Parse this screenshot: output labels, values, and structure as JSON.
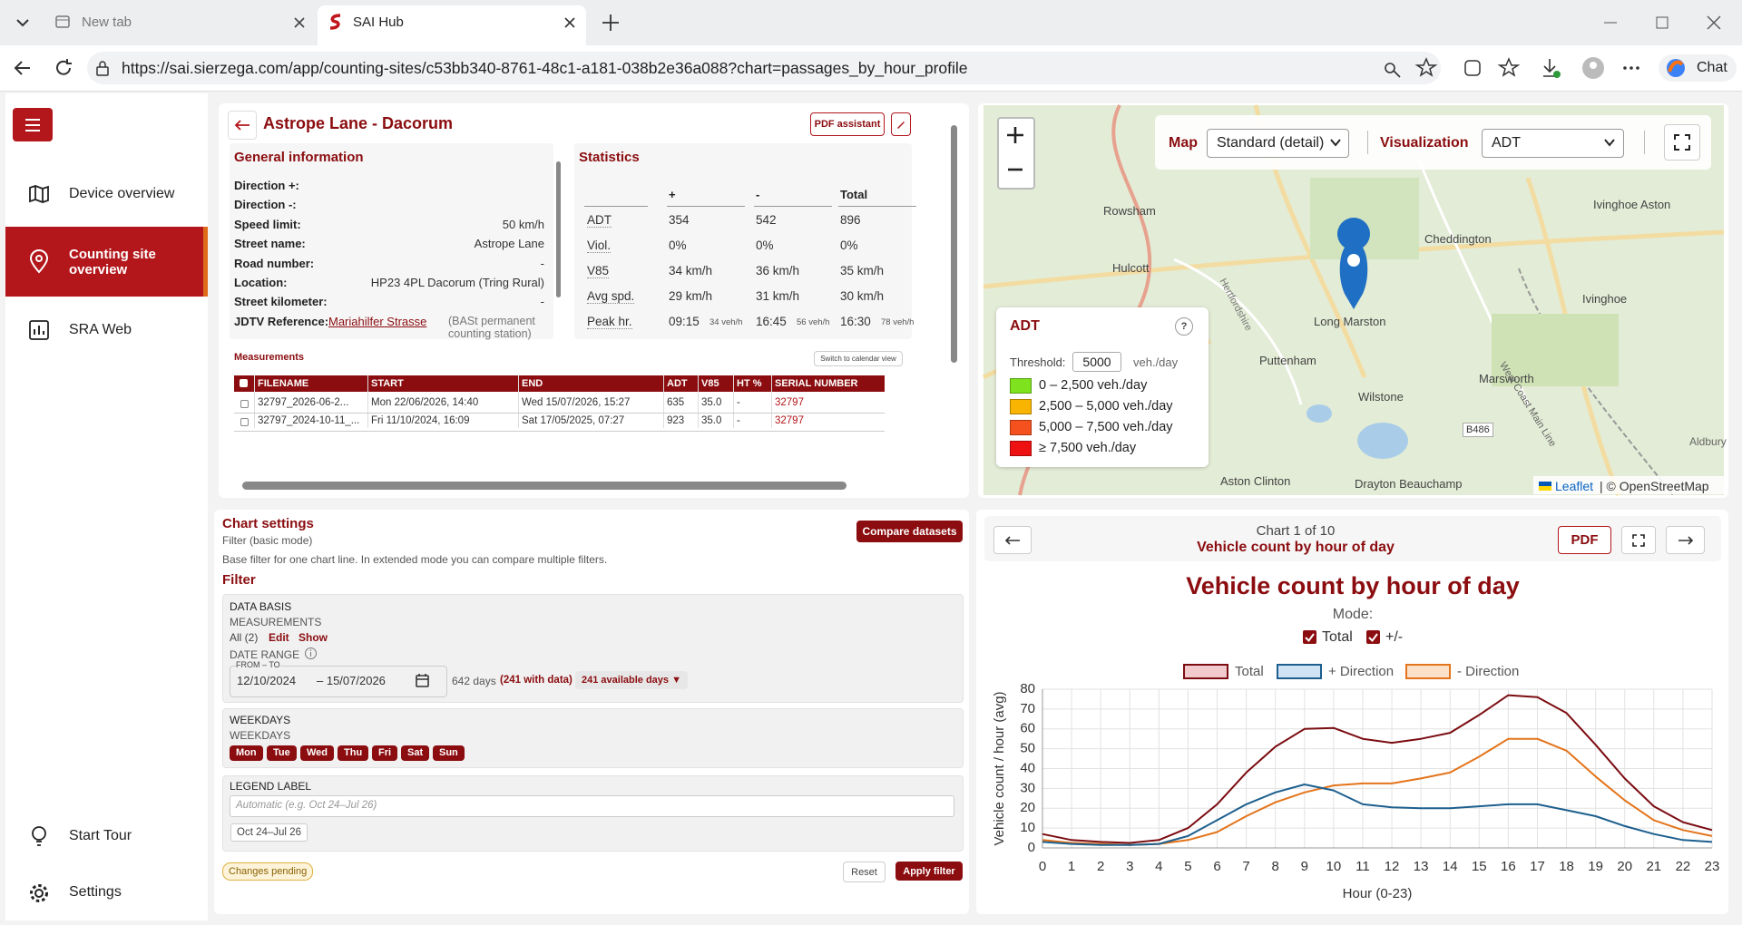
{
  "browser": {
    "tabs": [
      "New tab",
      "SAI Hub"
    ],
    "url": "https://sai.sierzega.com/app/counting-sites/c53bb340-8761-48c1-a181-038b2e36a088?chart=passages_by_hour_profile",
    "chat": "Chat"
  },
  "sidebar": {
    "items": [
      "Device overview",
      "Counting site overview",
      "SRA Web"
    ],
    "footer": [
      "Start Tour",
      "Settings"
    ]
  },
  "site": {
    "title": "Astrope Lane - Dacorum",
    "pdf_assistant": "PDF assistant",
    "general": {
      "title": "General information",
      "rows": [
        {
          "label": "Direction +:"
        },
        {
          "label": "Direction -:"
        },
        {
          "label": "Speed limit:",
          "value": "50 km/h"
        },
        {
          "label": "Street name:",
          "value": "Astrope Lane"
        },
        {
          "label": "Road number:",
          "value": "-"
        },
        {
          "label": "Location:",
          "value": "HP23 4PL Dacorum (Tring Rural)"
        },
        {
          "label": "Street kilometer:",
          "value": "-"
        },
        {
          "label": "JDTV Reference:",
          "value": "Mariahilfer Strasse",
          "note": "(BASt permanent counting station)"
        }
      ]
    },
    "statistics": {
      "title": "Statistics",
      "columns": [
        "+",
        "-",
        "Total"
      ],
      "rows": [
        {
          "label": "ADT",
          "values": [
            354,
            542,
            896
          ]
        },
        {
          "label": "Viol.",
          "values": [
            "0%",
            "0%",
            "0%"
          ]
        },
        {
          "label": "V85",
          "values": [
            "34 km/h",
            "36 km/h",
            "35 km/h"
          ]
        },
        {
          "label": "Avg spd.",
          "values": [
            "29 km/h",
            "31 km/h",
            "30 km/h"
          ]
        },
        {
          "label": "Peak hr.",
          "values": [
            "09:15",
            "16:45",
            "16:30"
          ],
          "rates": [
            "34 veh/h",
            "56 veh/h",
            "78 veh/h"
          ]
        }
      ]
    },
    "measurements": {
      "title": "Measurements",
      "switch": "Switch to calendar view",
      "columns": [
        "FILENAME",
        "START",
        "END",
        "ADT",
        "V85",
        "HT %",
        "SERIAL NUMBER"
      ],
      "rows": [
        [
          "32797_2026-06-2...",
          "Mon 22/06/2026, 14:40",
          "Wed 15/07/2026, 15:27",
          635,
          "35.0",
          "-",
          32797
        ],
        [
          "32797_2024-10-11_...",
          "Fri 11/10/2024, 16:09",
          "Sat 17/05/2025, 07:27",
          923,
          "35.0",
          "-",
          32797
        ]
      ]
    }
  },
  "map": {
    "controls": {
      "map_label": "Map",
      "map_select": "Standard (detail)",
      "vis_label": "Visualization",
      "vis_select": "ADT"
    },
    "places": [
      "Rowsham",
      "Hulcott",
      "Cheddington",
      "Ivinghoe Aston",
      "Ivinghoe",
      "Long Marston",
      "Puttenham",
      "Wilstone",
      "Marsworth",
      "Aston Clinton",
      "Drayton Beauchamp",
      "B486",
      "Hertfordshire",
      "West Coast Main Line",
      "Aldbury"
    ],
    "legend": {
      "title": "ADT",
      "help": "?",
      "threshold_label": "Threshold:",
      "threshold": 5000,
      "unit": "veh./day",
      "items": [
        {
          "label": "0 – 2,500 veh./day",
          "color": "#7ee21f"
        },
        {
          "label": "2,500 – 5,000 veh./day",
          "color": "#f8b400"
        },
        {
          "label": "5,000 – 7,500 veh./day",
          "color": "#f4511e"
        },
        {
          "label": "≥ 7,500 veh./day",
          "color": "#ee1111"
        }
      ]
    },
    "attribution": {
      "link": "Leaflet",
      "text": "| © OpenStreetMap"
    }
  },
  "chart_settings": {
    "title": "Chart settings",
    "mode": "Filter (basic mode)",
    "description": "Base filter for one chart line. In extended mode you can compare multiple filters.",
    "compare": "Compare datasets",
    "filter": "Filter",
    "data_basis": {
      "title": "DATA BASIS",
      "measurements_label": "MEASUREMENTS",
      "measurements": "All (2)",
      "edit": "Edit",
      "show": "Show",
      "date_range_label": "DATE RANGE",
      "from_to": "FROM – TO",
      "from": "12/10/2024",
      "to": "– 15/07/2026",
      "days": "642 days",
      "with_data": "(241 with data)",
      "available": "241 available days ▼"
    },
    "weekdays": {
      "title": "WEEKDAYS",
      "label": "WEEKDAYS",
      "days": [
        "Mon",
        "Tue",
        "Wed",
        "Thu",
        "Fri",
        "Sat",
        "Sun"
      ]
    },
    "legend_label": {
      "title": "LEGEND LABEL",
      "placeholder": "Automatic (e.g. Oct 24–Jul 26)",
      "value": "Oct 24–Jul 26"
    },
    "status": "Changes pending",
    "reset": "Reset",
    "apply": "Apply filter"
  },
  "chart_panel": {
    "position": "Chart 1 of 10",
    "subtitle": "Vehicle count by hour of day",
    "pdf": "PDF"
  },
  "chart_data": {
    "type": "line",
    "title": "Vehicle count by hour of day",
    "mode_label": "Mode:",
    "mode_options": [
      "Total",
      "+/-"
    ],
    "xlabel": "Hour (0-23)",
    "ylabel": "Vehicle count / hour (avg)",
    "x": [
      0,
      1,
      2,
      3,
      4,
      5,
      6,
      7,
      8,
      9,
      10,
      11,
      12,
      13,
      14,
      15,
      16,
      17,
      18,
      19,
      20,
      21,
      22,
      23
    ],
    "xlim": [
      0,
      23
    ],
    "xticks": [
      0,
      1,
      2,
      3,
      4,
      5,
      6,
      7,
      8,
      9,
      10,
      11,
      12,
      13,
      14,
      15,
      16,
      17,
      18,
      19,
      20,
      21,
      22,
      23
    ],
    "ylim": [
      0,
      80
    ],
    "yticks": [
      0,
      10,
      20,
      30,
      40,
      50,
      60,
      70,
      80
    ],
    "grid": true,
    "series": [
      {
        "name": "Total",
        "color": "#7b0d12",
        "legend_fill": "#f2c9cc",
        "values": [
          7,
          4,
          3,
          2.5,
          4,
          10,
          22,
          38,
          51,
          60,
          60.5,
          55,
          53,
          55,
          58,
          67,
          77,
          76,
          68,
          52,
          35,
          21,
          13,
          9
        ]
      },
      {
        "name": "+ Direction",
        "color": "#1d5f8e",
        "legend_fill": "#cfe3f5",
        "values": [
          3,
          2,
          1.5,
          1.5,
          2,
          6,
          14,
          22,
          28,
          32,
          29,
          22,
          20.5,
          20,
          20,
          21,
          22,
          22,
          19,
          16,
          11,
          7,
          4,
          3
        ]
      },
      {
        "name": "- Direction",
        "color": "#e3741b",
        "legend_fill": "#fde0c8",
        "values": [
          4,
          2.5,
          2,
          1.5,
          2,
          4,
          8,
          16,
          23,
          28,
          31.5,
          32.5,
          32.5,
          35,
          38,
          46,
          55,
          55,
          49,
          36,
          24,
          14,
          9,
          6
        ]
      }
    ]
  }
}
